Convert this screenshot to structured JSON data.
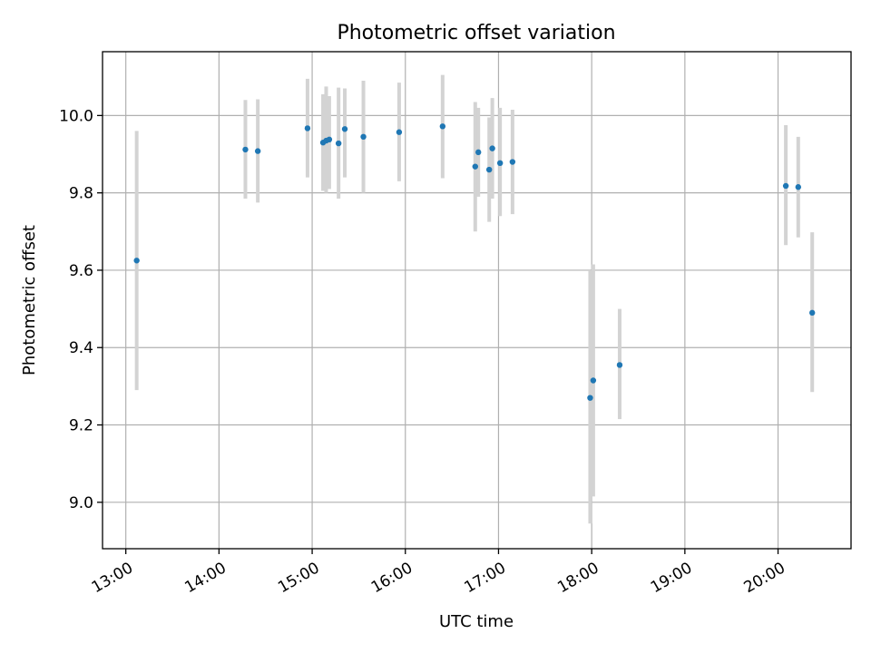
{
  "chart_data": {
    "type": "scatter",
    "title": "Photometric offset variation",
    "xlabel": "UTC time",
    "ylabel": "Photometric offset",
    "xlim": [
      "12:45",
      "20:47"
    ],
    "ylim": [
      8.88,
      10.165
    ],
    "x_ticks": [
      "13:00",
      "14:00",
      "15:00",
      "16:00",
      "17:00",
      "18:00",
      "19:00",
      "20:00"
    ],
    "y_ticks": [
      "9.0",
      "9.2",
      "9.4",
      "9.6",
      "9.8",
      "10.0"
    ],
    "grid": true,
    "colors": {
      "marker": "#1f77b4",
      "errorbar": "#d3d3d3",
      "grid": "#b0b0b0"
    },
    "points": [
      {
        "x": "13:07",
        "y": 9.625,
        "lo": 9.29,
        "hi": 9.96
      },
      {
        "x": "14:17",
        "y": 9.912,
        "lo": 9.785,
        "hi": 10.04
      },
      {
        "x": "14:25",
        "y": 9.908,
        "lo": 9.775,
        "hi": 10.042
      },
      {
        "x": "14:57",
        "y": 9.967,
        "lo": 9.84,
        "hi": 10.095
      },
      {
        "x": "15:07",
        "y": 9.93,
        "lo": 9.805,
        "hi": 10.055
      },
      {
        "x": "15:09",
        "y": 9.935,
        "lo": 9.8,
        "hi": 10.075
      },
      {
        "x": "15:11",
        "y": 9.938,
        "lo": 9.81,
        "hi": 10.05
      },
      {
        "x": "15:17",
        "y": 9.928,
        "lo": 9.785,
        "hi": 10.072
      },
      {
        "x": "15:21",
        "y": 9.965,
        "lo": 9.84,
        "hi": 10.07
      },
      {
        "x": "15:33",
        "y": 9.945,
        "lo": 9.8,
        "hi": 10.09
      },
      {
        "x": "15:56",
        "y": 9.957,
        "lo": 9.83,
        "hi": 10.085
      },
      {
        "x": "16:24",
        "y": 9.972,
        "lo": 9.838,
        "hi": 10.105
      },
      {
        "x": "16:45",
        "y": 9.868,
        "lo": 9.7,
        "hi": 10.035
      },
      {
        "x": "16:47",
        "y": 9.905,
        "lo": 9.79,
        "hi": 10.02
      },
      {
        "x": "16:54",
        "y": 9.86,
        "lo": 9.725,
        "hi": 9.995
      },
      {
        "x": "16:56",
        "y": 9.915,
        "lo": 9.785,
        "hi": 10.045
      },
      {
        "x": "17:01",
        "y": 9.877,
        "lo": 9.74,
        "hi": 10.02
      },
      {
        "x": "17:09",
        "y": 9.88,
        "lo": 9.745,
        "hi": 10.015
      },
      {
        "x": "17:59",
        "y": 9.27,
        "lo": 8.945,
        "hi": 9.6
      },
      {
        "x": "18:01",
        "y": 9.315,
        "lo": 9.015,
        "hi": 9.615
      },
      {
        "x": "18:18",
        "y": 9.355,
        "lo": 9.215,
        "hi": 9.5
      },
      {
        "x": "20:05",
        "y": 9.818,
        "lo": 9.665,
        "hi": 9.975
      },
      {
        "x": "20:13",
        "y": 9.815,
        "lo": 9.685,
        "hi": 9.945
      },
      {
        "x": "20:22",
        "y": 9.49,
        "lo": 9.285,
        "hi": 9.698
      }
    ]
  }
}
